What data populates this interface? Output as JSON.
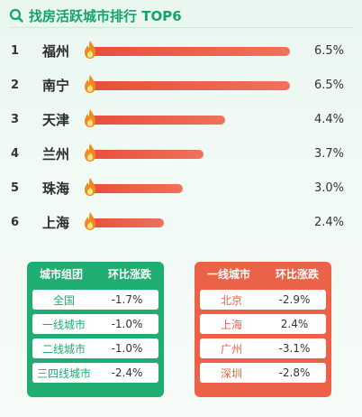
{
  "title": "找房活跃城市排行 TOP6",
  "colors": {
    "green": "#1fad72",
    "red": "#ec6248",
    "bar": "#e84f3c"
  },
  "icons": {
    "title": "search-icon",
    "flame": "flame-icon"
  },
  "ranking": [
    {
      "rank": "1",
      "city": "福州",
      "value": "6.5%",
      "fraction": 1.0
    },
    {
      "rank": "2",
      "city": "南宁",
      "value": "6.5%",
      "fraction": 1.0
    },
    {
      "rank": "3",
      "city": "天津",
      "value": "4.4%",
      "fraction": 0.677
    },
    {
      "rank": "4",
      "city": "兰州",
      "value": "3.7%",
      "fraction": 0.569
    },
    {
      "rank": "5",
      "city": "珠海",
      "value": "3.0%",
      "fraction": 0.462
    },
    {
      "rank": "6",
      "city": "上海",
      "value": "2.4%",
      "fraction": 0.369
    }
  ],
  "table_left": {
    "headers": [
      "城市组团",
      "环比涨跌"
    ],
    "rows": [
      [
        "全国",
        "-1.7%"
      ],
      [
        "一线城市",
        "-1.0%"
      ],
      [
        "二线城市",
        "-1.0%"
      ],
      [
        "三四线城市",
        "-2.4%"
      ]
    ]
  },
  "table_right": {
    "headers": [
      "一线城市",
      "环比涨跌"
    ],
    "rows": [
      [
        "北京",
        "-2.9%"
      ],
      [
        "上海",
        "2.4%"
      ],
      [
        "广州",
        "-3.1%"
      ],
      [
        "深圳",
        "-2.8%"
      ]
    ]
  }
}
